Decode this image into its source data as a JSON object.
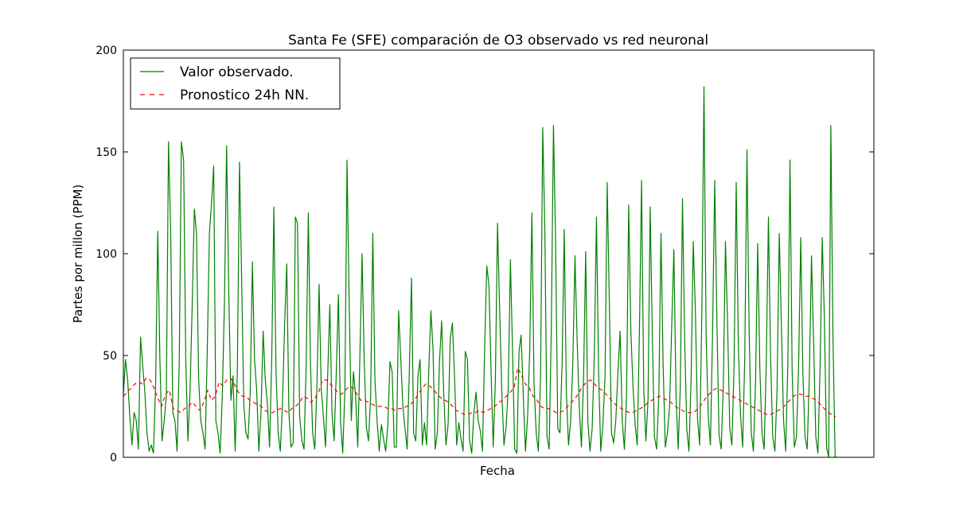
{
  "chart_data": {
    "type": "line",
    "title": "Santa Fe (SFE) comparación de O3 observado vs red neuronal",
    "xlabel": "Fecha",
    "ylabel": "Partes por millon (PPM)",
    "ylim": [
      0,
      200
    ],
    "y_ticks": [
      0,
      50,
      100,
      150,
      200
    ],
    "y_tick_labels": [
      "0",
      "50",
      "100",
      "150",
      "200"
    ],
    "legend_position": "top-left",
    "grid": false,
    "series": [
      {
        "name": "Valor observado.",
        "color": "#008000",
        "style": "solid",
        "values": [
          31,
          48,
          38,
          20,
          6,
          22,
          18,
          4,
          59,
          45,
          32,
          12,
          3,
          6,
          2,
          35,
          111,
          48,
          8,
          18,
          30,
          155,
          112,
          22,
          18,
          3,
          46,
          155,
          146,
          48,
          8,
          33,
          75,
          122,
          110,
          38,
          18,
          12,
          4,
          52,
          110,
          125,
          143,
          18,
          12,
          2,
          30,
          76,
          153,
          82,
          28,
          40,
          3,
          42,
          145,
          88,
          26,
          12,
          9,
          32,
          96,
          48,
          33,
          3,
          22,
          62,
          38,
          26,
          5,
          48,
          123,
          42,
          12,
          3,
          26,
          65,
          95,
          22,
          5,
          7,
          118,
          115,
          20,
          8,
          4,
          46,
          120,
          46,
          12,
          4,
          35,
          85,
          34,
          20,
          5,
          40,
          75,
          22,
          8,
          41,
          80,
          18,
          2,
          32,
          146,
          76,
          18,
          42,
          30,
          5,
          50,
          100,
          48,
          15,
          8,
          30,
          110,
          38,
          18,
          3,
          16,
          9,
          3,
          16,
          47,
          42,
          5,
          5,
          72,
          49,
          25,
          14,
          4,
          42,
          88,
          12,
          8,
          40,
          48,
          6,
          17,
          6,
          42,
          72,
          53,
          4,
          12,
          47,
          67,
          30,
          6,
          16,
          58,
          66,
          40,
          6,
          17,
          9,
          3,
          52,
          48,
          8,
          2,
          22,
          32,
          18,
          13,
          3,
          53,
          94,
          85,
          42,
          5,
          38,
          115,
          72,
          32,
          6,
          15,
          34,
          97,
          52,
          4,
          2,
          52,
          60,
          30,
          3,
          20,
          53,
          120,
          36,
          12,
          3,
          40,
          162,
          111,
          10,
          4,
          64,
          163,
          105,
          14,
          12,
          45,
          112,
          32,
          6,
          18,
          46,
          99,
          58,
          25,
          5,
          39,
          101,
          18,
          3,
          14,
          50,
          118,
          42,
          3,
          16,
          40,
          135,
          76,
          12,
          7,
          18,
          42,
          62,
          18,
          4,
          30,
          124,
          62,
          35,
          16,
          6,
          62,
          136,
          34,
          8,
          28,
          123,
          60,
          10,
          4,
          31,
          110,
          45,
          5,
          12,
          25,
          65,
          102,
          30,
          4,
          35,
          127,
          59,
          14,
          3,
          38,
          106,
          72,
          19,
          6,
          70,
          182,
          60,
          20,
          6,
          61,
          136,
          68,
          11,
          4,
          35,
          106,
          65,
          14,
          6,
          45,
          135,
          55,
          21,
          5,
          50,
          151,
          63,
          12,
          3,
          37,
          105,
          44,
          12,
          4,
          47,
          118,
          49,
          10,
          3,
          33,
          110,
          64,
          18,
          3,
          46,
          146,
          42,
          5,
          10,
          45,
          108,
          41,
          10,
          4,
          40,
          99,
          56,
          10,
          2,
          45,
          108,
          68,
          5,
          0,
          163,
          58,
          0,
          0
        ]
      },
      {
        "name": "Pronostico 24h NN.",
        "color": "#ff0000",
        "style": "dashed",
        "values": [
          30,
          32,
          34,
          36,
          37,
          36,
          39,
          38,
          34,
          29,
          25,
          31,
          33,
          24,
          23,
          22,
          24,
          25,
          27,
          25,
          23,
          27,
          33,
          28,
          30,
          37,
          35,
          38,
          39,
          36,
          32,
          30,
          30,
          28,
          27,
          26,
          25,
          23,
          22,
          22,
          23,
          24,
          23,
          22,
          24,
          25,
          27,
          30,
          29,
          27,
          29,
          32,
          38,
          38,
          36,
          34,
          32,
          31,
          33,
          35,
          34,
          31,
          28,
          28,
          27,
          26,
          25,
          25,
          25,
          24,
          24,
          23,
          24,
          24,
          25,
          26,
          28,
          31,
          34,
          36,
          35,
          33,
          31,
          29,
          28,
          27,
          25,
          23,
          22,
          21,
          21,
          22,
          22,
          23,
          22,
          23,
          24,
          25,
          27,
          28,
          30,
          32,
          34,
          44,
          40,
          36,
          34,
          30,
          28,
          25,
          24,
          24,
          23,
          22,
          22,
          23,
          25,
          27,
          29,
          32,
          35,
          37,
          38,
          36,
          34,
          33,
          31,
          29,
          27,
          25,
          24,
          23,
          22,
          22,
          23,
          24,
          25,
          27,
          28,
          29,
          30,
          29,
          28,
          27,
          25,
          24,
          23,
          22,
          22,
          22,
          24,
          26,
          29,
          31,
          33,
          34,
          33,
          32,
          31,
          30,
          29,
          28,
          27,
          26,
          25,
          24,
          23,
          22,
          21,
          21,
          22,
          23,
          24,
          26,
          28,
          30,
          31,
          31,
          30,
          30,
          29,
          28,
          26,
          24,
          22,
          21,
          20
        ]
      }
    ]
  }
}
